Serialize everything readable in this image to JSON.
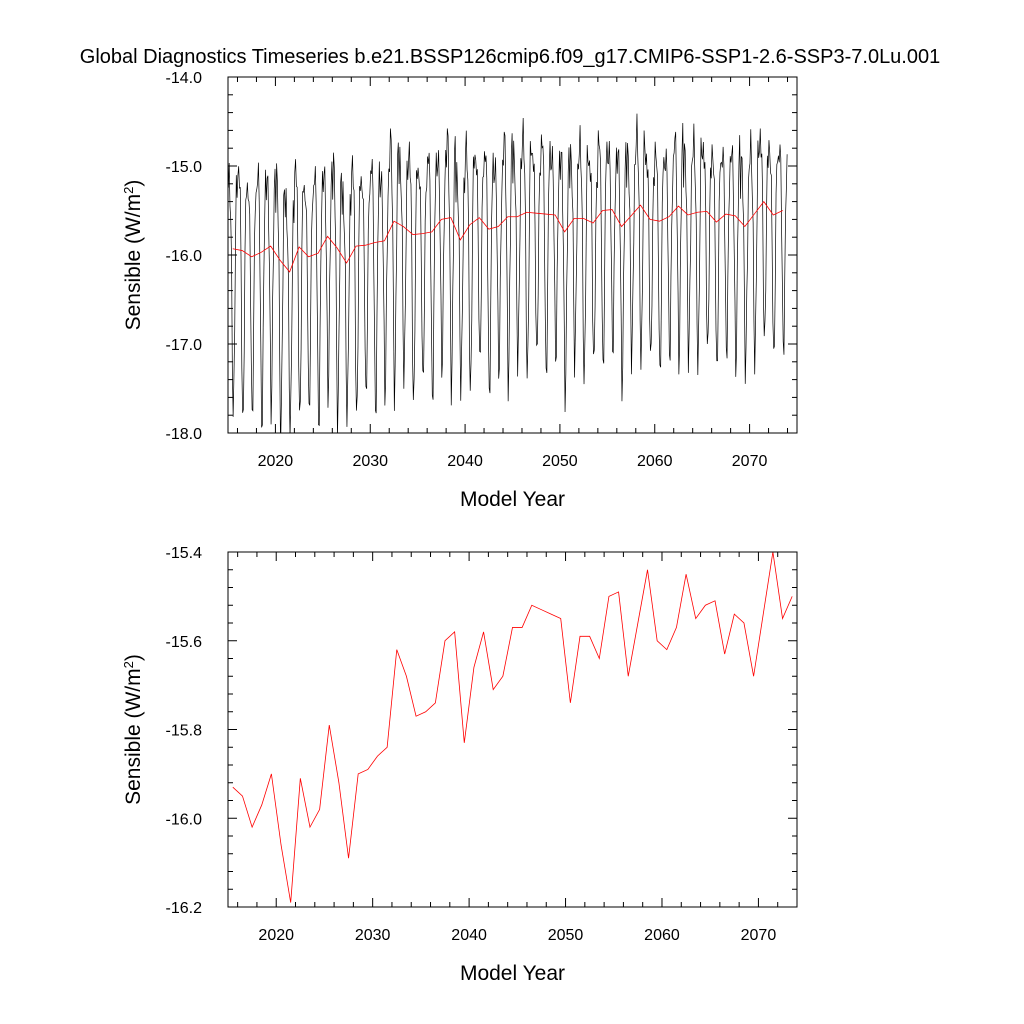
{
  "title": "Global Diagnostics Timeseries b.e21.BSSP126cmip6.f09_g17.CMIP6-SSP1-2.6-SSP3-7.0Lu.001",
  "chart_data": [
    {
      "type": "line",
      "xlabel": "Model Year",
      "ylabel": "Sensible (W/m",
      "ylabel_sup": "2",
      "ylabel_close": ")",
      "xlim": [
        2015,
        2075
      ],
      "ylim": [
        -18.0,
        -14.0
      ],
      "xticks": [
        2020,
        2030,
        2040,
        2050,
        2060,
        2070
      ],
      "xtick_labels": [
        "2020",
        "2030",
        "2040",
        "2050",
        "2060",
        "2070"
      ],
      "yticks": [
        -18.0,
        -17.0,
        -16.0,
        -15.0,
        -14.0
      ],
      "ytick_labels": [
        "-18.0",
        "-17.0",
        "-16.0",
        "-15.0",
        "-14.0"
      ],
      "series": [
        {
          "color": "#000000",
          "monthly": true,
          "annual_means": [
            -15.93,
            -15.95,
            -16.02,
            -15.97,
            -15.9,
            -16.06,
            -16.19,
            -15.91,
            -16.02,
            -15.98,
            -15.79,
            -15.92,
            -16.09,
            -15.9,
            -15.89,
            -15.86,
            -15.84,
            -15.62,
            -15.68,
            -15.77,
            -15.76,
            -15.74,
            -15.6,
            -15.58,
            -15.83,
            -15.66,
            -15.58,
            -15.71,
            -15.68,
            -15.57,
            -15.57,
            -15.52,
            -15.53,
            -15.54,
            -15.55,
            -15.74,
            -15.59,
            -15.59,
            -15.64,
            -15.5,
            -15.49,
            -15.68,
            -15.56,
            -15.44,
            -15.6,
            -15.62,
            -15.57,
            -15.45,
            -15.55,
            -15.52,
            -15.51,
            -15.63,
            -15.54,
            -15.56,
            -15.68,
            -15.54,
            -15.4,
            -15.55,
            -15.5
          ],
          "seasonal_amplitude": [
            1.25,
            1.05
          ],
          "seasonal_shape": [
            0.55,
            0.7,
            0.6,
            0.35,
            -0.15,
            -0.95,
            -1.55,
            -1.35,
            -0.7,
            -0.05,
            0.5,
            0.6
          ]
        },
        {
          "color": "#ff0000",
          "x": [
            2015.5,
            2016.5,
            2017.5,
            2018.5,
            2019.5,
            2020.5,
            2021.5,
            2022.5,
            2023.5,
            2024.5,
            2025.5,
            2026.5,
            2027.5,
            2028.5,
            2029.5,
            2030.5,
            2031.5,
            2032.5,
            2033.5,
            2034.5,
            2035.5,
            2036.5,
            2037.5,
            2038.5,
            2039.5,
            2040.5,
            2041.5,
            2042.5,
            2043.5,
            2044.5,
            2045.5,
            2046.5,
            2047.5,
            2048.5,
            2049.5,
            2050.5,
            2051.5,
            2052.5,
            2053.5,
            2054.5,
            2055.5,
            2056.5,
            2057.5,
            2058.5,
            2059.5,
            2060.5,
            2061.5,
            2062.5,
            2063.5,
            2064.5,
            2065.5,
            2066.5,
            2067.5,
            2068.5,
            2069.5,
            2070.5,
            2071.5,
            2072.5,
            2073.5
          ],
          "y": [
            -15.93,
            -15.95,
            -16.02,
            -15.97,
            -15.9,
            -16.06,
            -16.19,
            -15.91,
            -16.02,
            -15.98,
            -15.79,
            -15.92,
            -16.09,
            -15.9,
            -15.89,
            -15.86,
            -15.84,
            -15.62,
            -15.68,
            -15.77,
            -15.76,
            -15.74,
            -15.6,
            -15.58,
            -15.83,
            -15.66,
            -15.58,
            -15.71,
            -15.68,
            -15.57,
            -15.57,
            -15.52,
            -15.53,
            -15.54,
            -15.55,
            -15.74,
            -15.59,
            -15.59,
            -15.64,
            -15.5,
            -15.49,
            -15.68,
            -15.56,
            -15.44,
            -15.6,
            -15.62,
            -15.57,
            -15.45,
            -15.55,
            -15.52,
            -15.51,
            -15.63,
            -15.54,
            -15.56,
            -15.68,
            -15.54,
            -15.4,
            -15.55,
            -15.5
          ]
        }
      ]
    },
    {
      "type": "line",
      "xlabel": "Model Year",
      "ylabel": "Sensible (W/m",
      "ylabel_sup": "2",
      "ylabel_close": ")",
      "xlim": [
        2015,
        2074
      ],
      "ylim": [
        -16.2,
        -15.4
      ],
      "xticks": [
        2020,
        2030,
        2040,
        2050,
        2060,
        2070
      ],
      "xtick_labels": [
        "2020",
        "2030",
        "2040",
        "2050",
        "2060",
        "2070"
      ],
      "yticks": [
        -16.2,
        -16.0,
        -15.8,
        -15.6,
        -15.4
      ],
      "ytick_labels": [
        "-16.2",
        "-16.0",
        "-15.8",
        "-15.6",
        "-15.4"
      ],
      "series": [
        {
          "color": "#ff0000",
          "x": [
            2015.5,
            2016.5,
            2017.5,
            2018.5,
            2019.5,
            2020.5,
            2021.5,
            2022.5,
            2023.5,
            2024.5,
            2025.5,
            2026.5,
            2027.5,
            2028.5,
            2029.5,
            2030.5,
            2031.5,
            2032.5,
            2033.5,
            2034.5,
            2035.5,
            2036.5,
            2037.5,
            2038.5,
            2039.5,
            2040.5,
            2041.5,
            2042.5,
            2043.5,
            2044.5,
            2045.5,
            2046.5,
            2047.5,
            2048.5,
            2049.5,
            2050.5,
            2051.5,
            2052.5,
            2053.5,
            2054.5,
            2055.5,
            2056.5,
            2057.5,
            2058.5,
            2059.5,
            2060.5,
            2061.5,
            2062.5,
            2063.5,
            2064.5,
            2065.5,
            2066.5,
            2067.5,
            2068.5,
            2069.5,
            2070.5,
            2071.5,
            2072.5,
            2073.5
          ],
          "y": [
            -15.93,
            -15.95,
            -16.02,
            -15.97,
            -15.9,
            -16.06,
            -16.19,
            -15.91,
            -16.02,
            -15.98,
            -15.79,
            -15.92,
            -16.09,
            -15.9,
            -15.89,
            -15.86,
            -15.84,
            -15.62,
            -15.68,
            -15.77,
            -15.76,
            -15.74,
            -15.6,
            -15.58,
            -15.83,
            -15.66,
            -15.58,
            -15.71,
            -15.68,
            -15.57,
            -15.57,
            -15.52,
            -15.53,
            -15.54,
            -15.55,
            -15.74,
            -15.59,
            -15.59,
            -15.64,
            -15.5,
            -15.49,
            -15.68,
            -15.56,
            -15.44,
            -15.6,
            -15.62,
            -15.57,
            -15.45,
            -15.55,
            -15.52,
            -15.51,
            -15.63,
            -15.54,
            -15.56,
            -15.68,
            -15.54,
            -15.4,
            -15.55,
            -15.5
          ]
        }
      ]
    }
  ]
}
